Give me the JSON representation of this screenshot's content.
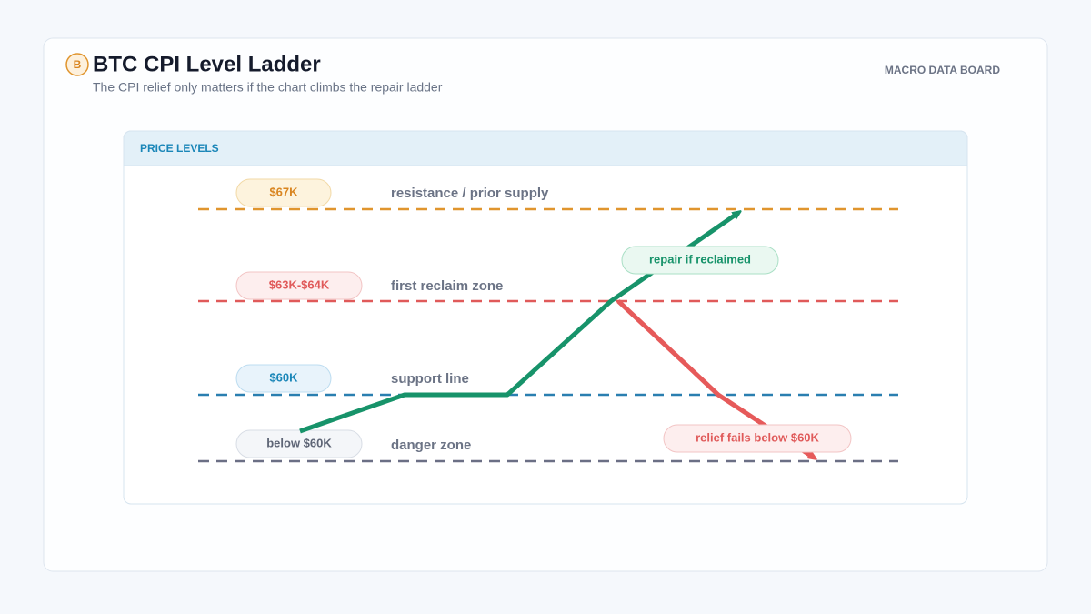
{
  "header": {
    "icon": "B",
    "title": "BTC CPI Level Ladder",
    "subtitle": "The CPI relief only matters if the chart climbs the repair ladder",
    "badge": "MACRO DATA BOARD"
  },
  "panel": {
    "title": "PRICE LEVELS",
    "levels": [
      {
        "label": "$67K",
        "description": "resistance / prior supply"
      },
      {
        "label": "$63K-$64K",
        "description": "first reclaim zone"
      },
      {
        "label": "$60K",
        "description": "support line"
      },
      {
        "label": "below $60K",
        "description": "danger zone"
      }
    ],
    "annotations": [
      "repair if reclaimed",
      "relief fails below $60K"
    ]
  }
}
